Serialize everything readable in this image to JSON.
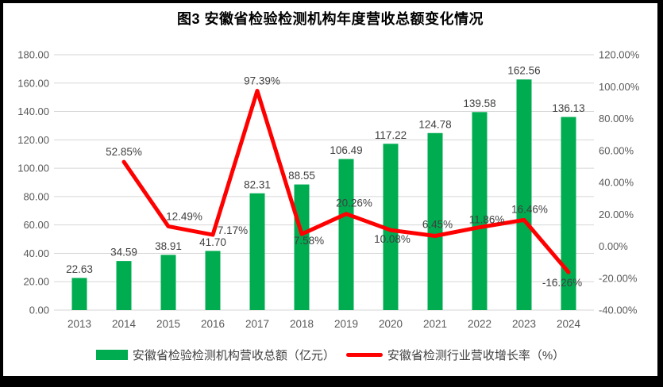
{
  "chart_data": {
    "type": "bar+line",
    "title": "图3 安徽省检验检测机构年度营收总额变化情况",
    "categories": [
      "2013",
      "2014",
      "2015",
      "2016",
      "2017",
      "2018",
      "2019",
      "2020",
      "2021",
      "2022",
      "2023",
      "2024"
    ],
    "series": [
      {
        "name": "安徽省检验检测机构营收总额（亿元）",
        "type": "bar",
        "axis": "left",
        "color": "#00AC50",
        "values": [
          22.63,
          34.59,
          38.91,
          41.7,
          82.31,
          88.55,
          106.49,
          117.22,
          124.78,
          139.58,
          162.56,
          136.13
        ],
        "labels": [
          "22.63",
          "34.59",
          "38.91",
          "41.70",
          "82.31",
          "88.55",
          "106.49",
          "117.22",
          "124.78",
          "139.58",
          "162.56",
          "136.13"
        ]
      },
      {
        "name": "安徽省检测行业营收增长率（%）",
        "type": "line",
        "axis": "right",
        "color": "#FF0000",
        "values": [
          null,
          52.85,
          12.49,
          7.17,
          97.39,
          7.58,
          20.26,
          10.08,
          6.45,
          11.86,
          16.46,
          -16.26
        ],
        "labels": [
          null,
          "52.85%",
          "12.49%",
          "7.17%",
          "97.39%",
          "7.58%",
          "20.26%",
          "10.08%",
          "6.45%",
          "11.86%",
          "16.46%",
          "-16.26%"
        ],
        "label_placement": [
          null,
          "above",
          "above",
          "right",
          "above",
          "below",
          "above",
          "below",
          "above",
          "above",
          "above",
          "below"
        ]
      }
    ],
    "left_axis": {
      "min": 0,
      "max": 180,
      "step": 20,
      "tick_labels": [
        "0.00",
        "20.00",
        "40.00",
        "60.00",
        "80.00",
        "100.00",
        "120.00",
        "140.00",
        "160.00",
        "180.00"
      ]
    },
    "right_axis": {
      "min": -40,
      "max": 120,
      "step": 20,
      "tick_labels": [
        "-40.00%",
        "-20.00%",
        "0.00%",
        "20.00%",
        "40.00%",
        "60.00%",
        "80.00%",
        "100.00%",
        "120.00%"
      ]
    },
    "grid": "horizontal",
    "gridline_color": "#D6D6D6",
    "legend_position": "bottom"
  }
}
